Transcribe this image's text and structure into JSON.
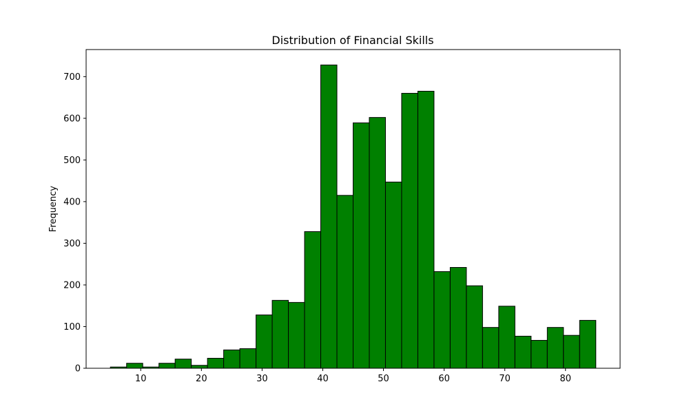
{
  "chart_data": {
    "type": "bar",
    "title": "Distribution of Financial Skills",
    "xlabel": "",
    "ylabel": "Frequency",
    "xlim": [
      1.0,
      89.0
    ],
    "ylim": [
      0,
      765
    ],
    "x_ticks": [
      10,
      20,
      30,
      40,
      50,
      60,
      70,
      80
    ],
    "y_ticks": [
      0,
      100,
      200,
      300,
      400,
      500,
      600,
      700
    ],
    "bin_edges": [
      5.0,
      7.667,
      10.333,
      13.0,
      15.667,
      18.333,
      21.0,
      23.667,
      26.333,
      29.0,
      31.667,
      34.333,
      37.0,
      39.667,
      42.333,
      45.0,
      47.667,
      50.333,
      53.0,
      55.667,
      58.333,
      61.0,
      63.667,
      66.333,
      69.0,
      71.667,
      74.333,
      77.0,
      79.667,
      82.333,
      85.0
    ],
    "values": [
      3,
      12,
      3,
      12,
      22,
      7,
      24,
      44,
      47,
      128,
      163,
      158,
      328,
      728,
      415,
      589,
      602,
      447,
      660,
      665,
      232,
      242,
      198,
      98,
      149,
      77,
      67,
      98,
      79,
      115
    ],
    "bar_color": "#008000",
    "edge_color": "#000000",
    "grid": false,
    "legend": "none"
  }
}
